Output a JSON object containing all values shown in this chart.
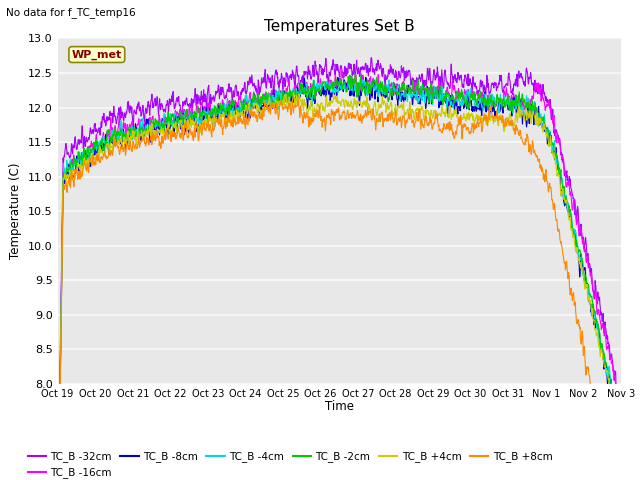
{
  "title": "Temperatures Set B",
  "subtitle": "No data for f_TC_temp16",
  "xlabel": "Time",
  "ylabel": "Temperature (C)",
  "ylim": [
    8.0,
    13.0
  ],
  "yticks": [
    8.0,
    8.5,
    9.0,
    9.5,
    10.0,
    10.5,
    11.0,
    11.5,
    12.0,
    12.5,
    13.0
  ],
  "x_tick_labels": [
    "Oct 19",
    "Oct 20",
    "Oct 21",
    "Oct 22",
    "Oct 23",
    "Oct 24",
    "Oct 25",
    "Oct 26",
    "Oct 27",
    "Oct 28",
    "Oct 29",
    "Oct 30",
    "Oct 31",
    "Nov 1",
    "Nov 2",
    "Nov 3"
  ],
  "figure_bg": "#ffffff",
  "plot_bg_color": "#e8e8e8",
  "grid_color": "#f8f8f8",
  "series": [
    {
      "label": "TC_B -32cm",
      "color": "#aa00ff"
    },
    {
      "label": "TC_B -16cm",
      "color": "#ff00ff"
    },
    {
      "label": "TC_B -8cm",
      "color": "#0000cc"
    },
    {
      "label": "TC_B -4cm",
      "color": "#00dddd"
    },
    {
      "label": "TC_B -2cm",
      "color": "#00cc00"
    },
    {
      "label": "TC_B +4cm",
      "color": "#cccc00"
    },
    {
      "label": "TC_B +8cm",
      "color": "#ff8800"
    }
  ],
  "wp_met_box_color": "#ffffcc",
  "wp_met_text_color": "#880000",
  "wp_met_border_color": "#888800",
  "n_days": 16,
  "pts_per_day": 96
}
